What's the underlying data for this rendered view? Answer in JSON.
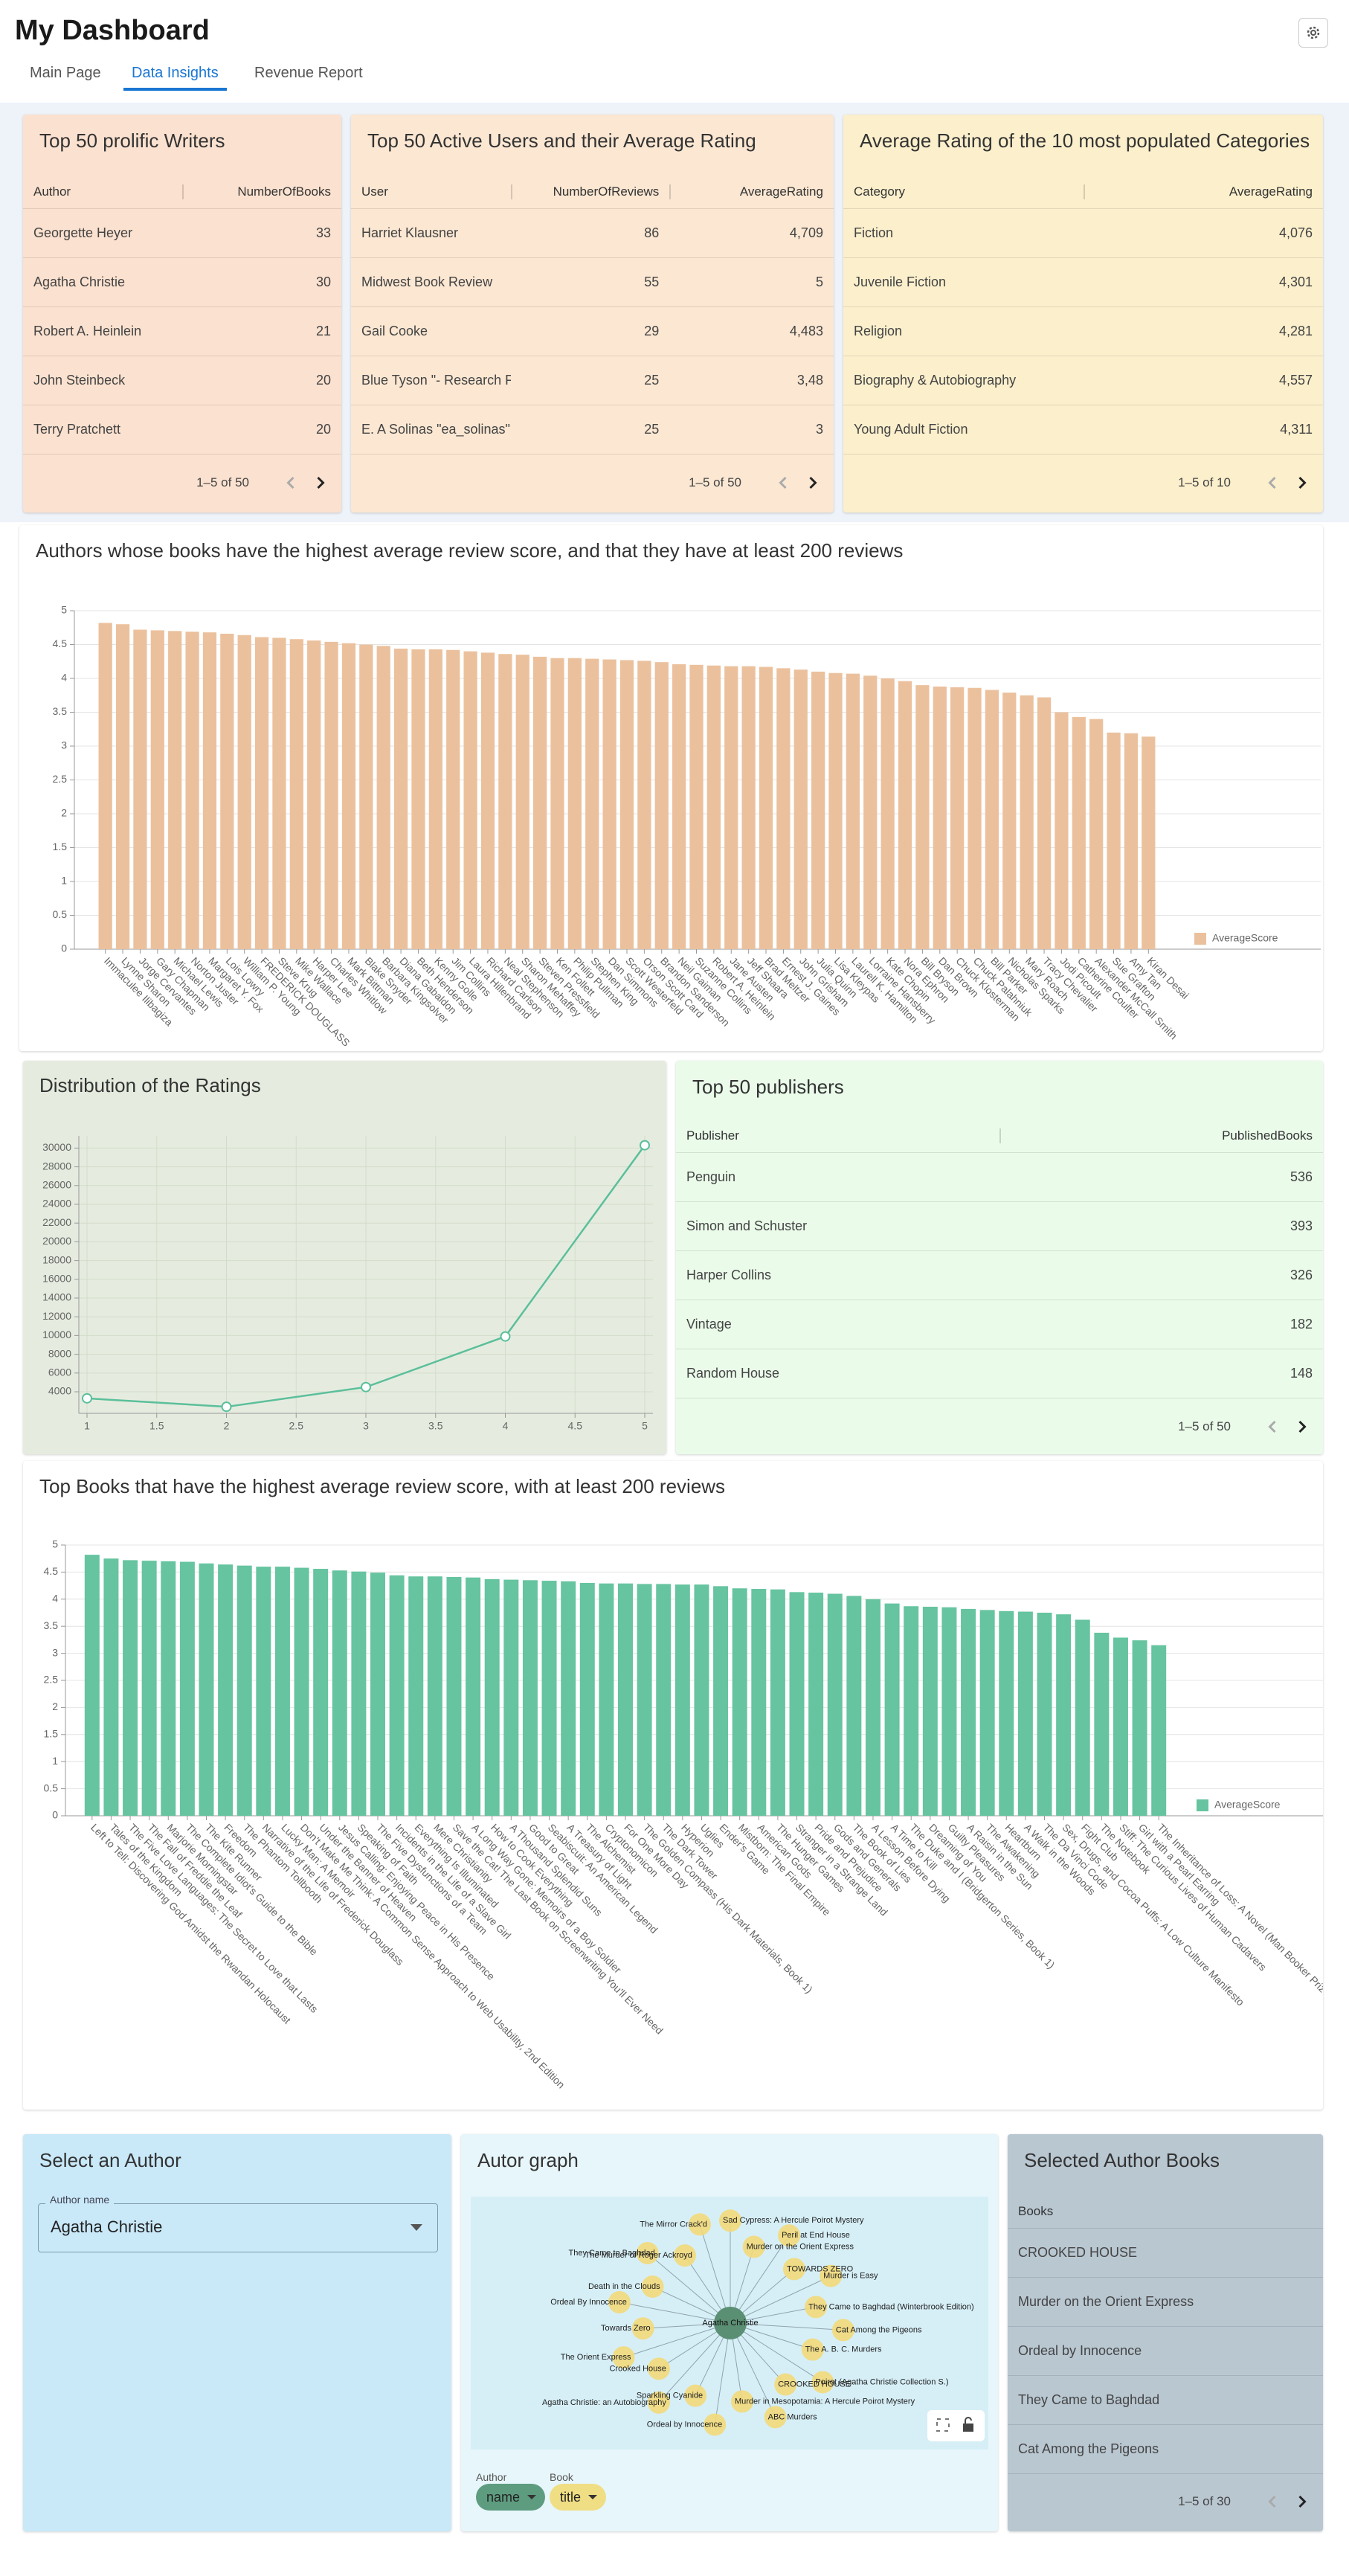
{
  "header": {
    "title": "My Dashboard",
    "tabs": [
      "Main Page",
      "Data Insights",
      "Revenue Report"
    ],
    "active_tab": 1
  },
  "top_writers": {
    "title": "Top 50 prolific Writers",
    "columns": [
      "Author",
      "NumberOfBooks"
    ],
    "rows": [
      [
        "Georgette Heyer",
        33
      ],
      [
        "Agatha Christie",
        30
      ],
      [
        "Robert A. Heinlein",
        21
      ],
      [
        "John Steinbeck",
        20
      ],
      [
        "Terry Pratchett",
        20
      ]
    ],
    "pagination": "1–5 of 50"
  },
  "active_users": {
    "title": "Top 50 Active Users and their Average Rating",
    "columns": [
      "User",
      "NumberOfReviews",
      "AverageRating"
    ],
    "rows": [
      [
        "Harriet Klausner",
        86,
        "4,709"
      ],
      [
        "Midwest Book Review",
        55,
        5
      ],
      [
        "Gail Cooke",
        29,
        "4,483"
      ],
      [
        "Blue Tyson \"- Research Fi",
        25,
        "3,48"
      ],
      [
        "E. A Solinas \"ea_solinas\"",
        25,
        3
      ]
    ],
    "pagination": "1–5 of 50"
  },
  "category_ratings": {
    "title": "Average Rating of the 10 most populated Categories",
    "columns": [
      "Category",
      "AverageRating"
    ],
    "rows": [
      [
        "Fiction",
        "4,076"
      ],
      [
        "Juvenile Fiction",
        "4,301"
      ],
      [
        "Religion",
        "4,281"
      ],
      [
        "Biography & Autobiography",
        "4,557"
      ],
      [
        "Young Adult Fiction",
        "4,311"
      ]
    ],
    "pagination": "1–5 of 10"
  },
  "publishers": {
    "title": "Top 50 publishers",
    "columns": [
      "Publisher",
      "PublishedBooks"
    ],
    "rows": [
      [
        "Penguin",
        536
      ],
      [
        "Simon and Schuster",
        393
      ],
      [
        "Harper Collins",
        326
      ],
      [
        "Vintage",
        182
      ],
      [
        "Random House",
        148
      ]
    ],
    "pagination": "1–5 of 50"
  },
  "chart_data": [
    {
      "type": "bar",
      "title": "Authors whose books have the highest average review score, and that they have at least 200 reviews",
      "categories": [
        "Immaculee Ilibagiza",
        "Lynne Sharon",
        "Jorge Cervantes",
        "Gary Chapman",
        "Michael Lewis",
        "Norton Juster",
        "Margaret Y. Fox",
        "Lois Lowry",
        "William P. Young",
        "FREDERICK DOUGLASS",
        "Steve Krug",
        "Mike Wallace",
        "Harper Lee",
        "Charles Whitlow",
        "Mark Bittman",
        "Blake Snyder",
        "Barbara Kingsolver",
        "Diana Gabaldon",
        "Beth Henderson",
        "Kenny Golle",
        "Jim Collins",
        "Laura Hillenbrand",
        "Richard Carlson",
        "Neal Stephenson",
        "Sharon Mehaffey",
        "Steven Pressfield",
        "Ken Follett",
        "Philip Pullman",
        "Stephen King",
        "Dan Simmons",
        "Scott Westerfeld",
        "Orson Scott Card",
        "Brandon Sanderson",
        "Neil Gaiman",
        "Suzanne Collins",
        "Robert A. Heinlein",
        "Jane Austen",
        "Jeff Shaara",
        "Brad Meltzer",
        "Ernest J. Gaines",
        "John Grisham",
        "Julia Quinn",
        "Lisa Kleypas",
        "Laurell K. Hamilton",
        "Lorraine Hansberry",
        "Kate Chopin",
        "Nora Ephron",
        "Bill Bryson",
        "Dan Brown",
        "Chuck Klosterman",
        "Chuck Palahniuk",
        "Bill Parker",
        "Nicholas Sparks",
        "Mary Roach",
        "Tracy Chevalier",
        "Jodi Picoult",
        "Catherine Coulter",
        "Alexander McCall Smith",
        "Sue Grafton",
        "Amy Tan",
        "Kiran Desai"
      ],
      "series": [
        {
          "name": "AverageScore",
          "color": "#ebc19d",
          "values": [
            4.82,
            4.8,
            4.72,
            4.71,
            4.7,
            4.69,
            4.68,
            4.66,
            4.64,
            4.61,
            4.6,
            4.58,
            4.56,
            4.54,
            4.52,
            4.5,
            4.48,
            4.44,
            4.43,
            4.43,
            4.42,
            4.4,
            4.38,
            4.36,
            4.35,
            4.32,
            4.3,
            4.3,
            4.29,
            4.28,
            4.27,
            4.26,
            4.24,
            4.21,
            4.2,
            4.19,
            4.18,
            4.18,
            4.17,
            4.15,
            4.13,
            4.1,
            4.08,
            4.07,
            4.04,
            4.0,
            3.96,
            3.9,
            3.88,
            3.87,
            3.86,
            3.83,
            3.79,
            3.75,
            3.72,
            3.5,
            3.43,
            3.4,
            3.2,
            3.19,
            3.14
          ]
        }
      ],
      "ylim": [
        0,
        5
      ],
      "yticks": [
        0,
        0.5,
        1,
        1.5,
        2,
        2.5,
        3,
        3.5,
        4,
        4.5,
        5
      ],
      "grid": "horizontal",
      "legend": "bottom-right"
    },
    {
      "type": "line",
      "title": "Distribution of the Ratings",
      "x": [
        1,
        2,
        3,
        4,
        5
      ],
      "values": [
        3300,
        2400,
        4500,
        9900,
        30300
      ],
      "color": "#5bbf9b",
      "xlim": [
        1,
        5
      ],
      "xticks": [
        1,
        1.5,
        2,
        2.5,
        3,
        3.5,
        4,
        4.5,
        5
      ],
      "ylim": [
        1700,
        31300
      ],
      "yticks": [
        4000,
        6000,
        8000,
        10000,
        12000,
        14000,
        16000,
        18000,
        20000,
        22000,
        24000,
        26000,
        28000,
        30000
      ],
      "grid": "both"
    },
    {
      "type": "bar",
      "title": "Top Books that have the highest average review score, with at least 200 reviews",
      "categories": [
        "Left to Tell: Discovering God Amidst the Rwandan Holocaust",
        "Tales of the Kingdom",
        "The Five Love Languages: The Secret to Love that Lasts",
        "The Fall of Freddie the Leaf",
        "Marjorie Morningstar",
        "The Complete Idiot's Guide to the Bible",
        "The Kite Runner",
        "Freedom",
        "The Phantom Tollbooth",
        "Narrative of the Life of Frederick Douglass",
        "Lucky Man: A Memoir",
        "Don't Make Me Think: A Common Sense Approach to Web Usability, 2nd Edition",
        "Under the Banner of Heaven",
        "Jesus Calling: Enjoying Peace in His Presence",
        "Speaking of Faith",
        "The Five Dysfunctions of a Team",
        "Incidents in the Life of a Slave Girl",
        "Everything Is Illuminated",
        "Mere Christianity",
        "Save the Cat! The Last Book on Screenwriting You'll Ever Need",
        "A Long Way Gone: Memoirs of a Boy Soldier",
        "How to Cook Everything",
        "A Thousand Splendid Suns",
        "Good to Great",
        "Seabiscuit: An American Legend",
        "A Treasury of Light",
        "The Alchemist",
        "Cryptonomicon",
        "For One More Day",
        "The Golden Compass (His Dark Materials, Book 1)",
        "The Dark Tower",
        "Hyperion",
        "Uglies",
        "Ender's Game",
        "Mistborn: The Final Empire",
        "American Gods",
        "The Hunger Games",
        "Stranger in a Strange Land",
        "Pride and Prejudice",
        "Gods and Generals",
        "The Book of Lies",
        "A Lesson Before Dying",
        "A Time to Kill",
        "The Duke and I (Bridgerton Series, Book 1)",
        "Dreaming of You",
        "Guilty Pleasures",
        "A Raisin in the Sun",
        "The Awakening",
        "Heartburn",
        "A Walk in the Woods",
        "The Da Vinci Code",
        "Sex, Drugs, and Cocoa Puffs: A Low Culture Manifesto",
        "Fight Club",
        "The Notebook",
        "Stiff: The Curious Lives of Human Cadavers",
        "Girl with a Pearl Earring",
        "The Inheritance of Loss: A Novel (Man Booker Prize)"
      ],
      "series": [
        {
          "name": "AverageScore",
          "color": "#66c4a0",
          "values": [
            4.82,
            4.75,
            4.72,
            4.71,
            4.7,
            4.69,
            4.66,
            4.64,
            4.62,
            4.6,
            4.6,
            4.58,
            4.56,
            4.53,
            4.51,
            4.49,
            4.44,
            4.42,
            4.42,
            4.41,
            4.4,
            4.37,
            4.36,
            4.35,
            4.34,
            4.33,
            4.3,
            4.29,
            4.29,
            4.28,
            4.28,
            4.27,
            4.27,
            4.24,
            4.2,
            4.19,
            4.18,
            4.13,
            4.12,
            4.1,
            4.06,
            4.0,
            3.92,
            3.87,
            3.86,
            3.85,
            3.82,
            3.8,
            3.78,
            3.77,
            3.75,
            3.72,
            3.62,
            3.38,
            3.29,
            3.24,
            3.15
          ]
        }
      ],
      "ylim": [
        0,
        5
      ],
      "yticks": [
        0,
        0.5,
        1,
        1.5,
        2,
        2.5,
        3,
        3.5,
        4,
        4.5,
        5
      ],
      "grid": "horizontal",
      "legend": "bottom-right"
    }
  ],
  "author_select": {
    "title": "Select an Author",
    "label": "Author name",
    "value": "Agatha Christie"
  },
  "author_graph": {
    "title": "Autor graph",
    "author": "Agatha Christie",
    "books": [
      "Sad Cypress: A Hercule Poirot Mystery",
      "Murder on the Orient Express",
      "Peril at End House",
      "TOWARDS ZERO",
      "Murder is Easy",
      "They Came to Baghdad (Winterbrook Edition)",
      "Cat Among the Pigeons",
      "The A. B. C. Murders",
      "Poirot (Agatha Christie Collection S.)",
      "CROOKED HOUSE",
      "ABC Murders",
      "Murder in Mesopotamia: A Hercule Poirot Mystery",
      "Ordeal by Innocence",
      "Sparkling Cyanide",
      "Agatha Christie: an Autobiography",
      "Crooked House",
      "The Orient Express",
      "Towards Zero",
      "Ordeal By Innocence",
      "Death in the Clouds",
      "They Came to Baghdad",
      "The Murder of Roger Ackroyd",
      "The Mirror Crack'd"
    ],
    "legend": [
      {
        "label": "Author",
        "field": "name"
      },
      {
        "label": "Book",
        "field": "title"
      }
    ]
  },
  "author_books": {
    "title": "Selected Author Books",
    "columns": [
      "Books"
    ],
    "rows": [
      [
        "CROOKED HOUSE"
      ],
      [
        "Murder on the Orient Express"
      ],
      [
        "Ordeal by Innocence"
      ],
      [
        "They Came to Baghdad"
      ],
      [
        "Cat Among the Pigeons"
      ]
    ],
    "pagination": "1–5 of 30"
  }
}
